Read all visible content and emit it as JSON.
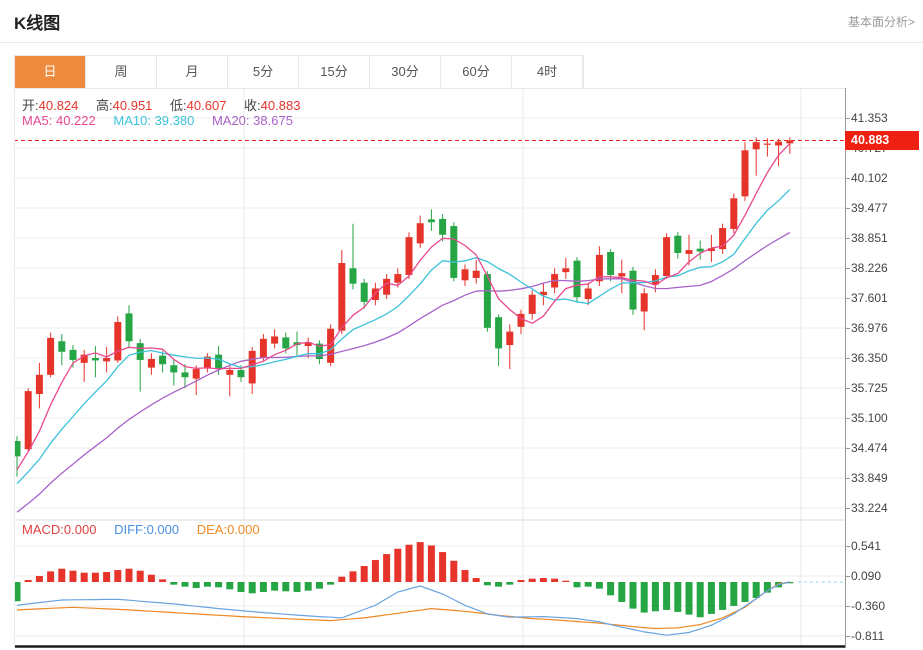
{
  "header": {
    "title": "K线图",
    "link": "基本面分析>"
  },
  "tabs": {
    "items": [
      {
        "label": "日",
        "selected": true
      },
      {
        "label": "周",
        "selected": false
      },
      {
        "label": "月",
        "selected": false
      },
      {
        "label": "5分",
        "selected": false
      },
      {
        "label": "15分",
        "selected": false
      },
      {
        "label": "30分",
        "selected": false
      },
      {
        "label": "60分",
        "selected": false
      },
      {
        "label": "4时",
        "selected": false
      }
    ]
  },
  "quote_bar": {
    "open_label": "开:",
    "open": "40.824",
    "high_label": "高:",
    "high": "40.951",
    "low_label": "低:",
    "low": "40.607",
    "close_label": "收:",
    "close": "40.883"
  },
  "ma_bar": {
    "ma5_label": "MA5:",
    "ma5": "40.222",
    "ma10_label": "MA10:",
    "ma10": "39.380",
    "ma20_label": "MA20:",
    "ma20": "38.675"
  },
  "macd_bar": {
    "macd_label": "MACD:",
    "macd": "0.000",
    "diff_label": "DIFF:",
    "diff": "0.000",
    "dea_label": "DEA:",
    "dea": "0.000"
  },
  "price_tag": {
    "value": "40.883"
  },
  "colors": {
    "up": "#e7342b",
    "down": "#26a545",
    "ma5": "#e8498f",
    "ma10": "#3cc3da",
    "ma20": "#a962c9",
    "diff_line": "#6aa3e0",
    "dea_line": "#ee8822",
    "tag": "#ee2012",
    "tab_active": "#ee8a3e",
    "grid": "#ececec",
    "vgrid": "#e8e8e8",
    "zero_dash": "#8fd4e8",
    "bottom_border": "#1a1a1a"
  },
  "chart_data": {
    "type": "candlestick",
    "title": "K线图 (daily K-line with MA5/MA10/MA20 and MACD)",
    "legend_position": "top-left-overlay",
    "grid": true,
    "main": {
      "y_ticks": [
        41.353,
        40.727,
        40.102,
        39.477,
        38.851,
        38.226,
        37.601,
        36.976,
        36.35,
        35.725,
        35.1,
        34.474,
        33.849,
        33.224
      ],
      "ylim": [
        33.0,
        41.55
      ],
      "last_price": 40.883,
      "ohlc_order": "open,high,low,close",
      "candles": [
        [
          34.62,
          34.72,
          33.88,
          34.3
        ],
        [
          34.45,
          35.72,
          34.4,
          35.66
        ],
        [
          35.6,
          36.25,
          35.3,
          36.0
        ],
        [
          36.0,
          36.88,
          35.95,
          36.77
        ],
        [
          36.7,
          36.85,
          36.2,
          36.48
        ],
        [
          36.52,
          36.62,
          36.15,
          36.31
        ],
        [
          36.25,
          36.52,
          35.85,
          36.42
        ],
        [
          36.35,
          36.6,
          35.95,
          36.3
        ],
        [
          36.28,
          36.58,
          36.05,
          36.35
        ],
        [
          36.3,
          37.22,
          36.25,
          37.1
        ],
        [
          37.28,
          37.45,
          36.55,
          36.7
        ],
        [
          36.66,
          36.75,
          35.65,
          36.31
        ],
        [
          36.15,
          36.45,
          36.0,
          36.33
        ],
        [
          36.4,
          36.5,
          36.05,
          36.22
        ],
        [
          36.2,
          36.32,
          35.78,
          36.05
        ],
        [
          36.05,
          36.22,
          35.72,
          35.95
        ],
        [
          35.92,
          36.2,
          35.58,
          36.12
        ],
        [
          36.15,
          36.45,
          36.05,
          36.38
        ],
        [
          36.42,
          36.6,
          36.0,
          36.12
        ],
        [
          36.0,
          36.18,
          35.55,
          36.1
        ],
        [
          36.1,
          36.2,
          35.85,
          35.95
        ],
        [
          35.82,
          36.58,
          35.6,
          36.5
        ],
        [
          36.35,
          36.85,
          36.28,
          36.75
        ],
        [
          36.65,
          36.95,
          36.55,
          36.8
        ],
        [
          36.78,
          36.88,
          36.45,
          36.55
        ],
        [
          36.68,
          36.9,
          36.4,
          36.62
        ],
        [
          36.6,
          36.78,
          36.35,
          36.68
        ],
        [
          36.65,
          36.72,
          36.22,
          36.33
        ],
        [
          36.25,
          37.05,
          36.18,
          36.96
        ],
        [
          36.92,
          38.6,
          36.85,
          38.33
        ],
        [
          38.22,
          39.15,
          37.78,
          37.9
        ],
        [
          37.92,
          38.0,
          37.38,
          37.52
        ],
        [
          37.56,
          37.92,
          37.45,
          37.8
        ],
        [
          37.67,
          38.1,
          37.58,
          38.0
        ],
        [
          37.92,
          38.22,
          37.82,
          38.1
        ],
        [
          38.08,
          38.97,
          38.0,
          38.87
        ],
        [
          38.74,
          39.32,
          38.65,
          39.16
        ],
        [
          39.24,
          39.45,
          39.0,
          39.18
        ],
        [
          39.25,
          39.35,
          38.78,
          38.92
        ],
        [
          39.1,
          39.18,
          37.95,
          38.02
        ],
        [
          37.97,
          38.3,
          37.85,
          38.2
        ],
        [
          38.02,
          38.4,
          37.9,
          38.17
        ],
        [
          38.1,
          38.16,
          36.9,
          36.98
        ],
        [
          37.2,
          37.26,
          36.18,
          36.55
        ],
        [
          36.62,
          37.05,
          36.12,
          36.9
        ],
        [
          37.0,
          37.36,
          36.85,
          37.27
        ],
        [
          37.27,
          37.76,
          37.15,
          37.67
        ],
        [
          37.66,
          37.92,
          37.45,
          37.73
        ],
        [
          37.82,
          38.22,
          37.7,
          38.1
        ],
        [
          38.14,
          38.44,
          38.0,
          38.22
        ],
        [
          38.38,
          38.45,
          37.5,
          37.62
        ],
        [
          37.58,
          37.92,
          37.45,
          37.8
        ],
        [
          37.95,
          38.68,
          37.85,
          38.5
        ],
        [
          38.56,
          38.62,
          37.95,
          38.08
        ],
        [
          38.05,
          38.4,
          37.7,
          38.12
        ],
        [
          38.17,
          38.25,
          37.25,
          37.36
        ],
        [
          37.32,
          37.8,
          36.93,
          37.7
        ],
        [
          37.88,
          38.2,
          37.72,
          38.08
        ],
        [
          38.06,
          38.95,
          38.0,
          38.87
        ],
        [
          38.9,
          38.98,
          38.42,
          38.54
        ],
        [
          38.52,
          38.92,
          38.28,
          38.6
        ],
        [
          38.63,
          38.8,
          38.4,
          38.57
        ],
        [
          38.58,
          38.92,
          38.35,
          38.64
        ],
        [
          38.62,
          39.15,
          38.52,
          39.06
        ],
        [
          39.04,
          39.78,
          38.95,
          39.68
        ],
        [
          39.72,
          40.85,
          39.62,
          40.68
        ],
        [
          40.7,
          40.95,
          40.15,
          40.85
        ],
        [
          40.8,
          40.93,
          40.55,
          40.82
        ],
        [
          40.78,
          40.92,
          40.35,
          40.86
        ],
        [
          40.824,
          40.951,
          40.607,
          40.883
        ]
      ],
      "ma_seed_closes": [
        31.9,
        32.0,
        32.1,
        32.2,
        32.35,
        32.5,
        32.6,
        32.7,
        32.85,
        33.0,
        33.1,
        33.2,
        33.35,
        33.45,
        33.55,
        33.66,
        33.77,
        33.88,
        34.0,
        34.15
      ],
      "ma_periods": {
        "ma5": 5,
        "ma10": 10,
        "ma20": 20
      }
    },
    "macd": {
      "y_ticks": [
        0.541,
        0.09,
        -0.36,
        -0.811
      ],
      "histogram": [
        -0.29,
        0.03,
        0.09,
        0.16,
        0.2,
        0.17,
        0.14,
        0.14,
        0.15,
        0.18,
        0.2,
        0.17,
        0.11,
        0.04,
        -0.04,
        -0.07,
        -0.09,
        -0.07,
        -0.08,
        -0.11,
        -0.15,
        -0.17,
        -0.15,
        -0.13,
        -0.14,
        -0.15,
        -0.13,
        -0.1,
        -0.04,
        0.08,
        0.16,
        0.24,
        0.33,
        0.42,
        0.5,
        0.56,
        0.6,
        0.55,
        0.45,
        0.32,
        0.18,
        0.06,
        -0.05,
        -0.07,
        -0.04,
        0.03,
        0.05,
        0.06,
        0.05,
        0.02,
        -0.08,
        -0.07,
        -0.1,
        -0.2,
        -0.3,
        -0.4,
        -0.46,
        -0.44,
        -0.42,
        -0.45,
        -0.49,
        -0.53,
        -0.48,
        -0.42,
        -0.36,
        -0.3,
        -0.24,
        -0.16,
        -0.08,
        -0.02
      ],
      "diff_points": [
        [
          0,
          -0.35
        ],
        [
          4,
          -0.27
        ],
        [
          9,
          -0.26
        ],
        [
          14,
          -0.33
        ],
        [
          18,
          -0.4
        ],
        [
          22,
          -0.46
        ],
        [
          26,
          -0.51
        ],
        [
          29,
          -0.54
        ],
        [
          32,
          -0.35
        ],
        [
          34,
          -0.15
        ],
        [
          36,
          -0.06
        ],
        [
          38,
          -0.18
        ],
        [
          40,
          -0.35
        ],
        [
          42,
          -0.48
        ],
        [
          44,
          -0.53
        ],
        [
          47,
          -0.52
        ],
        [
          50,
          -0.55
        ],
        [
          52,
          -0.6
        ],
        [
          54,
          -0.68
        ],
        [
          56,
          -0.75
        ],
        [
          58,
          -0.8
        ],
        [
          60,
          -0.76
        ],
        [
          62,
          -0.65
        ],
        [
          64,
          -0.48
        ],
        [
          66,
          -0.25
        ],
        [
          67,
          -0.13
        ],
        [
          68,
          -0.04
        ],
        [
          69,
          0.0
        ]
      ],
      "dea_points": [
        [
          0,
          -0.42
        ],
        [
          5,
          -0.38
        ],
        [
          10,
          -0.42
        ],
        [
          15,
          -0.47
        ],
        [
          20,
          -0.52
        ],
        [
          25,
          -0.56
        ],
        [
          28,
          -0.58
        ],
        [
          31,
          -0.54
        ],
        [
          34,
          -0.47
        ],
        [
          37,
          -0.4
        ],
        [
          40,
          -0.44
        ],
        [
          43,
          -0.5
        ],
        [
          46,
          -0.55
        ],
        [
          49,
          -0.58
        ],
        [
          52,
          -0.62
        ],
        [
          55,
          -0.67
        ],
        [
          57,
          -0.7
        ],
        [
          59,
          -0.69
        ],
        [
          61,
          -0.64
        ],
        [
          63,
          -0.54
        ],
        [
          65,
          -0.38
        ],
        [
          66,
          -0.25
        ],
        [
          67,
          -0.13
        ],
        [
          68,
          -0.03
        ],
        [
          69,
          0.0
        ]
      ]
    }
  }
}
